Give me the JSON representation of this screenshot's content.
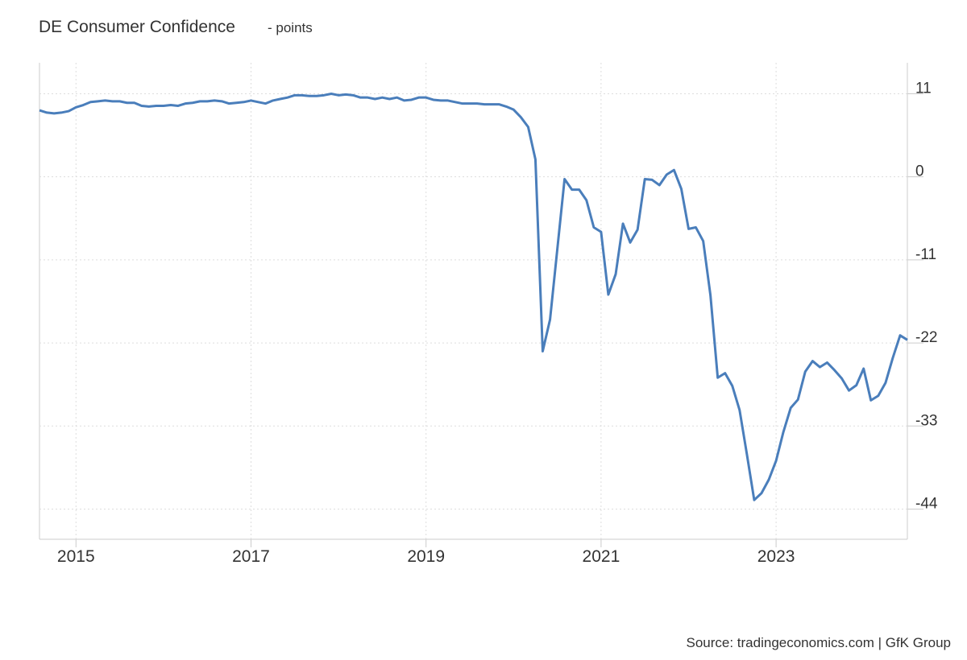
{
  "chart_data": {
    "type": "line",
    "title": "DE Consumer Confidence",
    "subtitle": "- points",
    "source": "Source: tradingeconomics.com | GfK Group",
    "x": [
      2014.583,
      2014.667,
      2014.75,
      2014.833,
      2014.917,
      2015,
      2015.083,
      2015.167,
      2015.25,
      2015.333,
      2015.417,
      2015.5,
      2015.583,
      2015.667,
      2015.75,
      2015.833,
      2015.917,
      2016,
      2016.083,
      2016.167,
      2016.25,
      2016.333,
      2016.417,
      2016.5,
      2016.583,
      2016.667,
      2016.75,
      2016.833,
      2016.917,
      2017,
      2017.083,
      2017.167,
      2017.25,
      2017.333,
      2017.417,
      2017.5,
      2017.583,
      2017.667,
      2017.75,
      2017.833,
      2017.917,
      2018,
      2018.083,
      2018.167,
      2018.25,
      2018.333,
      2018.417,
      2018.5,
      2018.583,
      2018.667,
      2018.75,
      2018.833,
      2018.917,
      2019,
      2019.083,
      2019.167,
      2019.25,
      2019.333,
      2019.417,
      2019.5,
      2019.583,
      2019.667,
      2019.75,
      2019.833,
      2019.917,
      2020,
      2020.083,
      2020.167,
      2020.25,
      2020.333,
      2020.417,
      2020.5,
      2020.583,
      2020.667,
      2020.75,
      2020.833,
      2020.917,
      2021,
      2021.083,
      2021.167,
      2021.25,
      2021.333,
      2021.417,
      2021.5,
      2021.583,
      2021.667,
      2021.75,
      2021.833,
      2021.917,
      2022,
      2022.083,
      2022.167,
      2022.25,
      2022.333,
      2022.417,
      2022.5,
      2022.583,
      2022.667,
      2022.75,
      2022.833,
      2022.917,
      2023,
      2023.083,
      2023.167,
      2023.25,
      2023.333,
      2023.417,
      2023.5,
      2023.583,
      2023.667,
      2023.75,
      2023.833,
      2023.917,
      2024,
      2024.083,
      2024.167,
      2024.25,
      2024.333,
      2024.417,
      2024.5
    ],
    "series": [
      {
        "name": "DE Consumer Confidence",
        "color": "#4a7ebb",
        "values": [
          8.8,
          8.5,
          8.4,
          8.5,
          8.7,
          9.2,
          9.5,
          9.9,
          10.0,
          10.1,
          10.0,
          10.0,
          9.8,
          9.8,
          9.4,
          9.3,
          9.4,
          9.4,
          9.5,
          9.4,
          9.7,
          9.8,
          10.0,
          10.0,
          10.1,
          10.0,
          9.7,
          9.8,
          9.9,
          10.1,
          9.9,
          9.7,
          10.1,
          10.3,
          10.5,
          10.8,
          10.8,
          10.7,
          10.7,
          10.8,
          11.0,
          10.8,
          10.9,
          10.8,
          10.5,
          10.5,
          10.3,
          10.5,
          10.3,
          10.5,
          10.1,
          10.2,
          10.5,
          10.5,
          10.2,
          10.1,
          10.1,
          9.9,
          9.7,
          9.7,
          9.7,
          9.6,
          9.6,
          9.6,
          9.3,
          8.9,
          7.9,
          6.6,
          2.3,
          -23.1,
          -18.9,
          -9.6,
          -0.3,
          -1.7,
          -1.7,
          -3.1,
          -6.7,
          -7.3,
          -15.6,
          -12.9,
          -6.2,
          -8.7,
          -7.0,
          -0.3,
          -0.4,
          -1.1,
          0.3,
          0.9,
          -1.6,
          -6.9,
          -6.7,
          -8.5,
          -15.7,
          -26.6,
          -26.0,
          -27.7,
          -30.9,
          -36.8,
          -42.8,
          -41.9,
          -40.1,
          -37.6,
          -33.8,
          -30.6,
          -29.5,
          -25.8,
          -24.4,
          -25.2,
          -24.6,
          -25.6,
          -26.7,
          -28.3,
          -27.6,
          -25.4,
          -29.6,
          -29.0,
          -27.3,
          -24.0,
          -21.0,
          -21.6
        ]
      }
    ],
    "xlim": [
      2014.583,
      2024.5
    ],
    "xticks": [
      2015,
      2017,
      2019,
      2021,
      2023
    ],
    "ylim": [
      -48,
      15.1
    ],
    "yticks": [
      11,
      0,
      -11,
      -22,
      -33,
      -44
    ],
    "grid": true
  }
}
